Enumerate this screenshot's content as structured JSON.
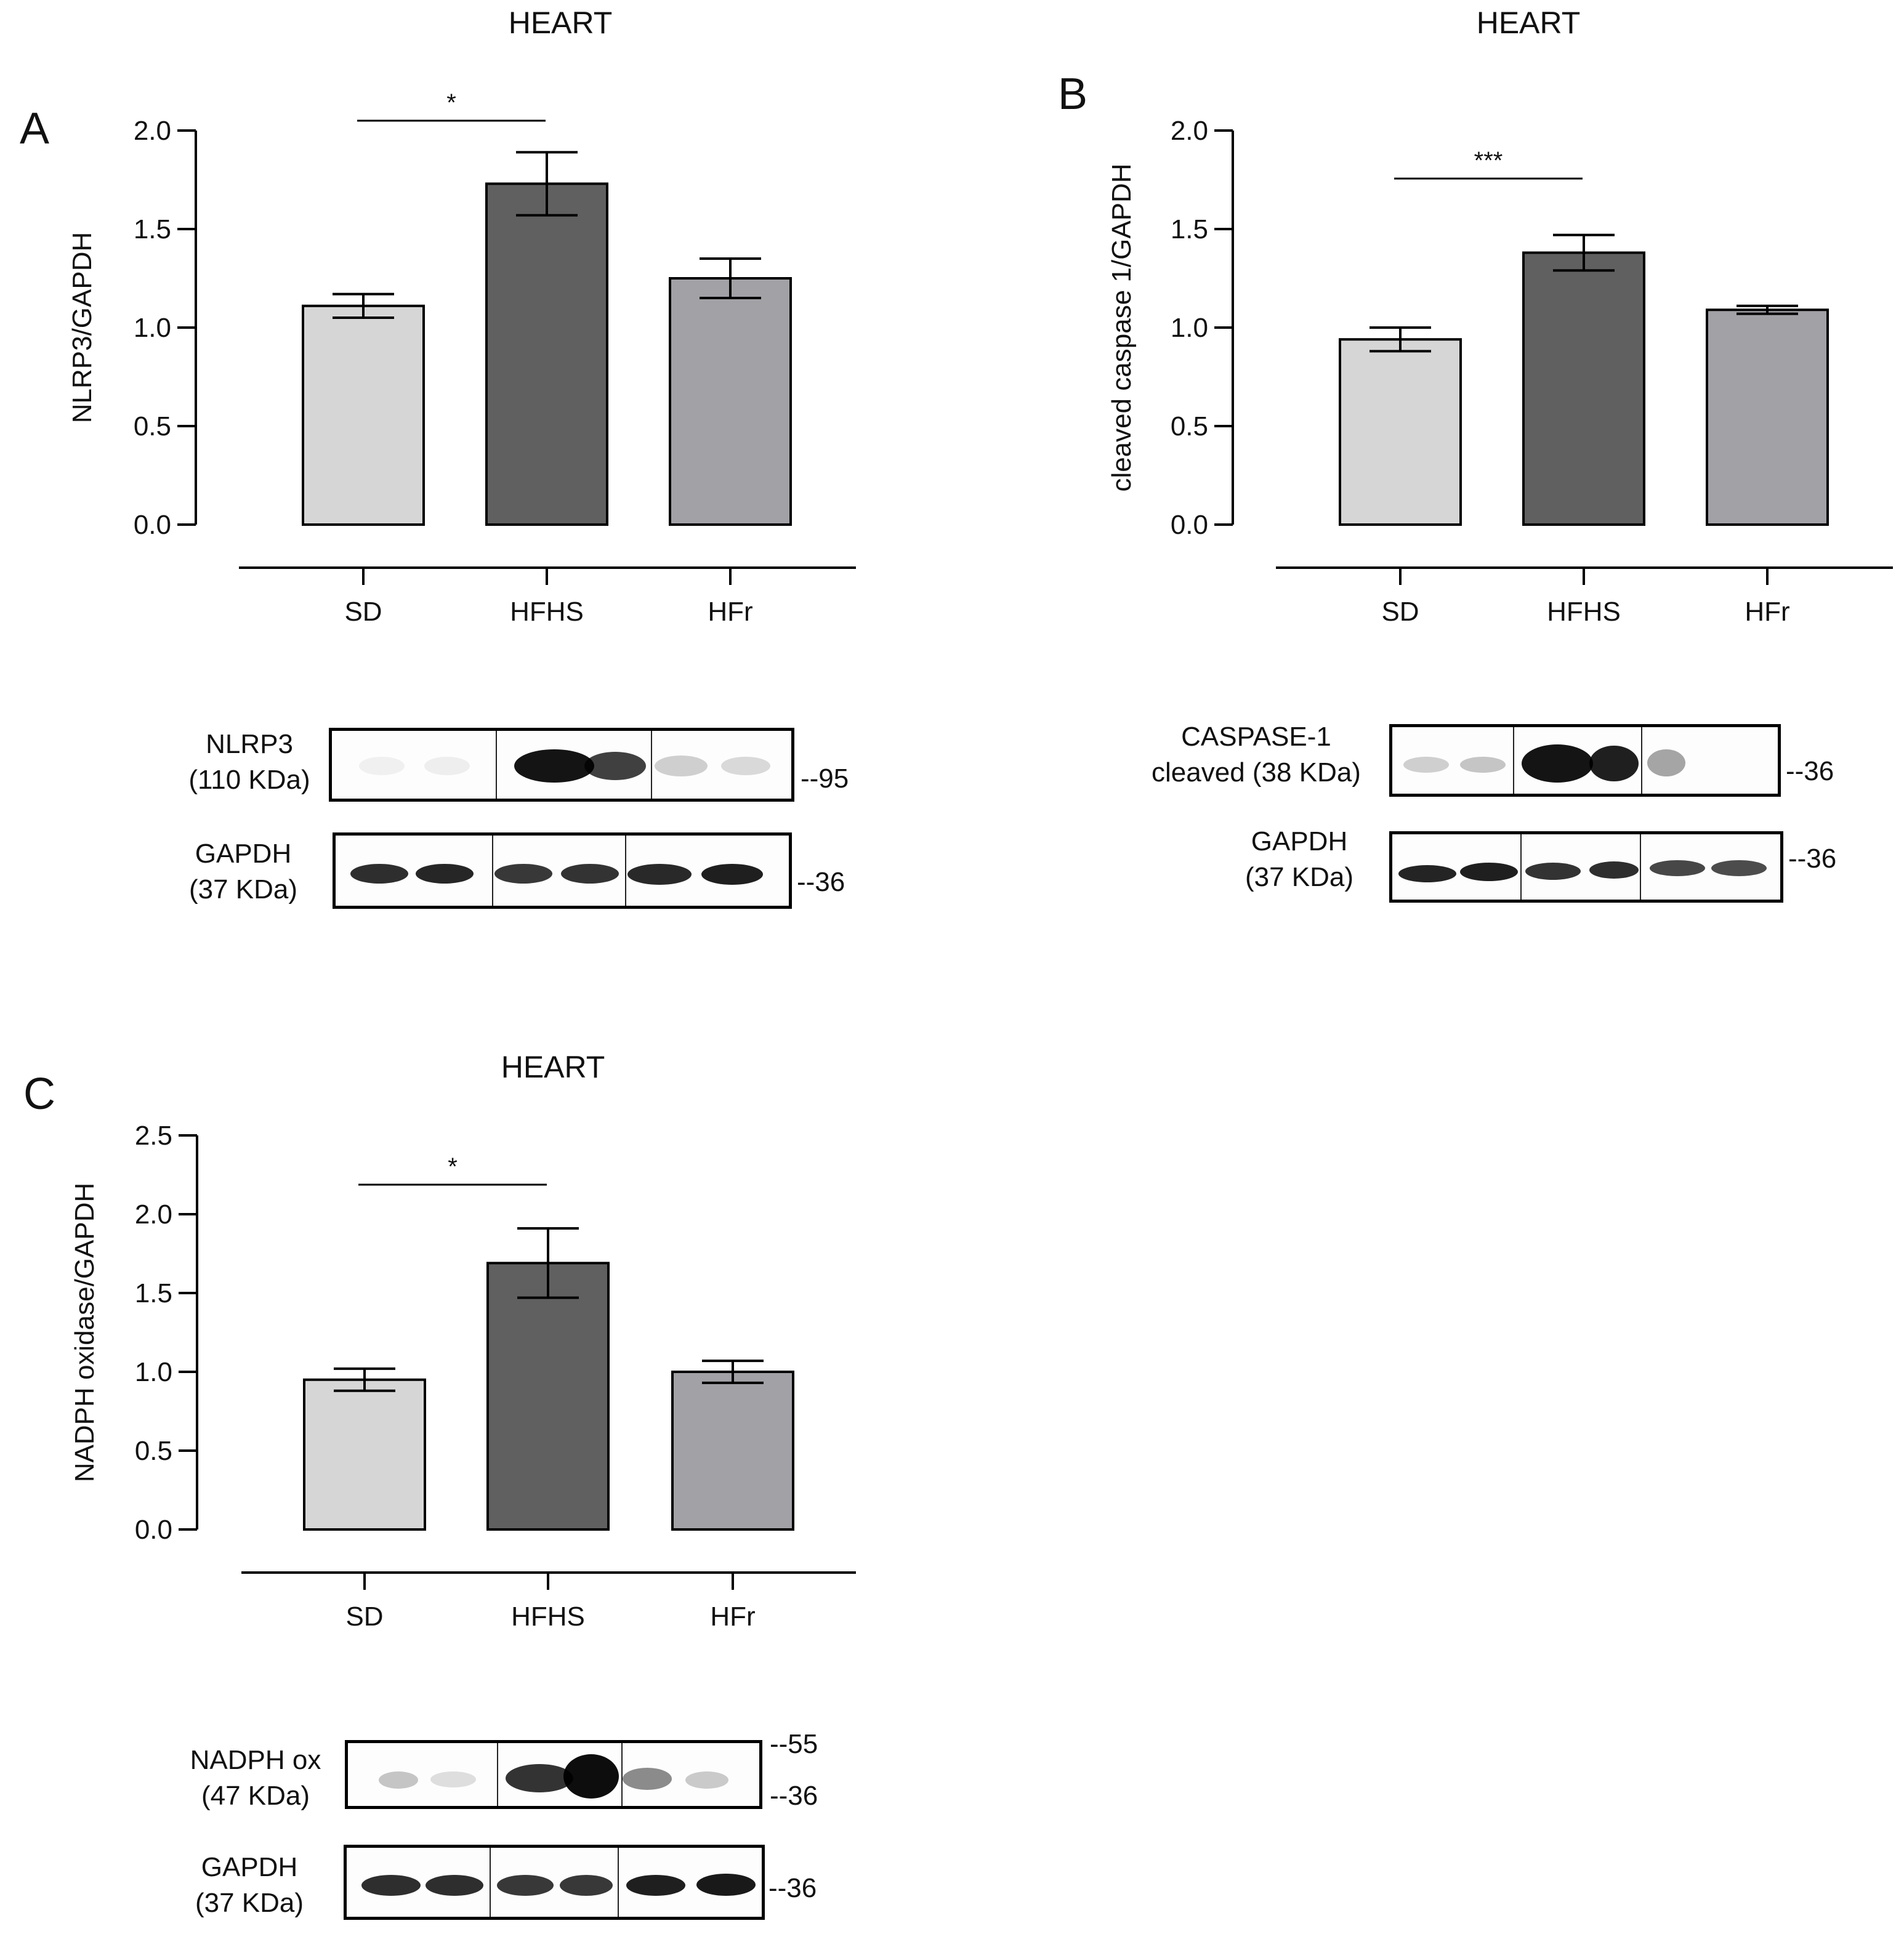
{
  "panels": {
    "A": {
      "letter": "A",
      "title": "HEART",
      "blots": {
        "target": {
          "label_line1": "NLRP3",
          "label_line2": "(110 KDa)",
          "markers": [
            "--95"
          ]
        },
        "control": {
          "label_line1": "GAPDH",
          "label_line2": "(37 KDa)",
          "markers": [
            "--36"
          ]
        }
      }
    },
    "B": {
      "letter": "B",
      "title": "HEART",
      "blots": {
        "target": {
          "label_line1": "CASPASE-1",
          "label_line2": "cleaved (38 KDa)",
          "markers": [
            "--36"
          ]
        },
        "control": {
          "label_line1": "GAPDH",
          "label_line2": "(37 KDa)",
          "markers": [
            "--36"
          ]
        }
      }
    },
    "C": {
      "letter": "C",
      "title": "HEART",
      "blots": {
        "target": {
          "label_line1": "NADPH ox",
          "label_line2": "(47 KDa)",
          "markers": [
            "--55",
            "--36"
          ]
        },
        "control": {
          "label_line1": "GAPDH",
          "label_line2": "(37 KDa)",
          "markers": [
            "--36"
          ]
        }
      }
    }
  },
  "chart_data": [
    {
      "type": "bar",
      "panel": "A",
      "title": "HEART",
      "categories": [
        "SD",
        "HFHS",
        "HFr"
      ],
      "values": [
        1.11,
        1.73,
        1.25
      ],
      "errors": [
        0.06,
        0.16,
        0.1
      ],
      "colors": [
        "#d6d6d6",
        "#606060",
        "#a2a1a6"
      ],
      "xlabel": "",
      "ylabel": "NLRP3/GAPDH",
      "ylim": [
        0,
        2.0
      ],
      "yticks": [
        "0.0",
        "0.5",
        "1.0",
        "1.5",
        "2.0"
      ],
      "significance": [
        {
          "from": "SD",
          "to": "HFHS",
          "label": "*"
        }
      ]
    },
    {
      "type": "bar",
      "panel": "B",
      "title": "HEART",
      "categories": [
        "SD",
        "HFHS",
        "HFr"
      ],
      "values": [
        0.94,
        1.38,
        1.09
      ],
      "errors": [
        0.06,
        0.09,
        0.02
      ],
      "colors": [
        "#d6d6d6",
        "#606060",
        "#a2a1a6"
      ],
      "xlabel": "",
      "ylabel": "cleaved caspase 1/GAPDH",
      "ylim": [
        0,
        2.0
      ],
      "yticks": [
        "0.0",
        "0.5",
        "1.0",
        "1.5",
        "2.0"
      ],
      "significance": [
        {
          "from": "SD",
          "to": "HFHS",
          "label": "***"
        }
      ]
    },
    {
      "type": "bar",
      "panel": "C",
      "title": "HEART",
      "categories": [
        "SD",
        "HFHS",
        "HFr"
      ],
      "values": [
        0.95,
        1.69,
        1.0
      ],
      "errors": [
        0.07,
        0.22,
        0.07
      ],
      "colors": [
        "#d6d6d6",
        "#606060",
        "#a2a1a6"
      ],
      "xlabel": "",
      "ylabel": "NADPH oxidase/GAPDH",
      "ylim": [
        0,
        2.5
      ],
      "yticks": [
        "0.0",
        "0.5",
        "1.0",
        "1.5",
        "2.0",
        "2.5"
      ],
      "significance": [
        {
          "from": "SD",
          "to": "HFHS",
          "label": "*"
        }
      ]
    }
  ]
}
